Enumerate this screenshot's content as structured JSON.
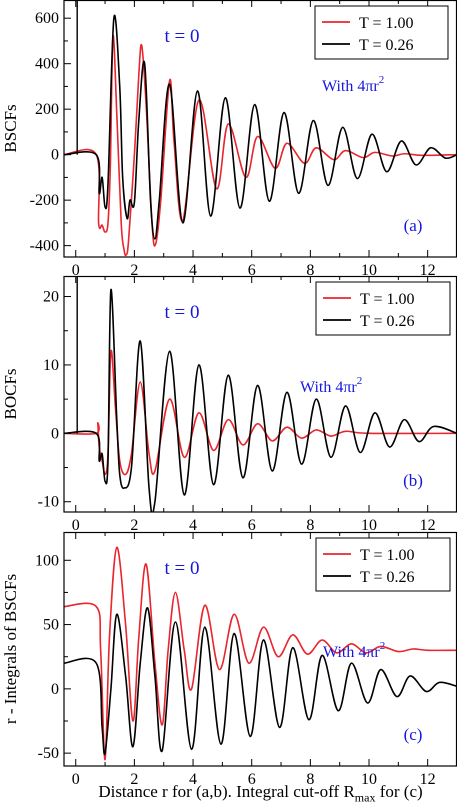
{
  "figure": {
    "xlabel_parts": {
      "prefix": "Distance  r  for (a,b). Integral cut-off  R",
      "sub": "max",
      "suffix": "  for (c)"
    },
    "xticks": [
      0,
      2,
      4,
      6,
      8,
      10,
      12
    ],
    "xlim": [
      -0.4,
      13.0
    ],
    "colors": {
      "t100": "#e8262d",
      "t026": "#000000",
      "annotation": "#1515e0"
    }
  },
  "chart_data": [
    {
      "type": "line",
      "panel": "(a)",
      "title": "t = 0",
      "annotation": "With  4πr",
      "annotation_sup": "2",
      "ylabel": "BSCFs",
      "xlim": [
        -0.4,
        13.0
      ],
      "ylim": [
        -450,
        680
      ],
      "yticks": [
        -400,
        -200,
        0,
        200,
        400,
        600
      ],
      "xticks": [
        0,
        2,
        4,
        6,
        8,
        10,
        12
      ],
      "legend": "top-right",
      "series": [
        {
          "name": "T = 1.00",
          "color": "#e8262d",
          "points": [
            [
              -0.4,
              0
            ],
            [
              0.7,
              0
            ],
            [
              0.78,
              -300
            ],
            [
              0.9,
              -310
            ],
            [
              1.0,
              -340
            ],
            [
              1.1,
              -300
            ],
            [
              1.18,
              -50
            ],
            [
              1.27,
              520
            ],
            [
              1.4,
              180
            ],
            [
              1.55,
              -300
            ],
            [
              1.65,
              -420
            ],
            [
              1.72,
              -440
            ],
            [
              1.8,
              -380
            ],
            [
              2.0,
              0
            ],
            [
              2.15,
              350
            ],
            [
              2.25,
              480
            ],
            [
              2.4,
              220
            ],
            [
              2.6,
              -300
            ],
            [
              2.72,
              -395
            ],
            [
              2.9,
              -200
            ],
            [
              3.2,
              325
            ],
            [
              3.35,
              60
            ],
            [
              3.65,
              -290
            ],
            [
              4.2,
              240
            ],
            [
              4.8,
              -150
            ],
            [
              5.2,
              135
            ],
            [
              5.8,
              -100
            ],
            [
              6.2,
              80
            ],
            [
              6.8,
              -60
            ],
            [
              7.2,
              50
            ],
            [
              7.8,
              -38
            ],
            [
              8.2,
              30
            ],
            [
              8.8,
              -22
            ],
            [
              9.2,
              18
            ],
            [
              9.8,
              -13
            ],
            [
              10.2,
              10
            ],
            [
              10.8,
              -6
            ],
            [
              11.2,
              4
            ],
            [
              11.8,
              -3
            ],
            [
              13,
              0
            ]
          ]
        },
        {
          "name": "T = 0.26",
          "color": "#000000",
          "points": [
            [
              -0.4,
              0
            ],
            [
              0.7,
              0
            ],
            [
              0.8,
              -170
            ],
            [
              0.9,
              -100
            ],
            [
              1.0,
              -230
            ],
            [
              1.1,
              -130
            ],
            [
              1.3,
              600
            ],
            [
              1.5,
              300
            ],
            [
              1.6,
              -100
            ],
            [
              1.75,
              -280
            ],
            [
              1.85,
              -200
            ],
            [
              2.0,
              -210
            ],
            [
              2.15,
              150
            ],
            [
              2.35,
              400
            ],
            [
              2.55,
              -200
            ],
            [
              2.7,
              -370
            ],
            [
              2.85,
              -200
            ],
            [
              3.2,
              310
            ],
            [
              3.65,
              -300
            ],
            [
              4.15,
              280
            ],
            [
              4.6,
              -270
            ],
            [
              5.1,
              250
            ],
            [
              5.6,
              -235
            ],
            [
              6.1,
              220
            ],
            [
              6.6,
              -205
            ],
            [
              7.1,
              185
            ],
            [
              7.6,
              -170
            ],
            [
              8.1,
              150
            ],
            [
              8.6,
              -135
            ],
            [
              9.1,
              120
            ],
            [
              9.6,
              -105
            ],
            [
              10.1,
              90
            ],
            [
              10.6,
              -75
            ],
            [
              11.1,
              60
            ],
            [
              11.6,
              -45
            ],
            [
              12.1,
              30
            ],
            [
              12.6,
              -15
            ],
            [
              13,
              0
            ]
          ]
        }
      ]
    },
    {
      "type": "line",
      "panel": "(b)",
      "title": "t = 0",
      "annotation": "With  4πr",
      "annotation_sup": "2",
      "ylabel": "BOCFs",
      "xlim": [
        -0.4,
        13.0
      ],
      "ylim": [
        -11.5,
        23
      ],
      "yticks": [
        -10,
        0,
        10,
        20
      ],
      "xticks": [
        0,
        2,
        4,
        6,
        8,
        10,
        12
      ],
      "legend": "top-right",
      "series": [
        {
          "name": "T = 1.00",
          "color": "#e8262d",
          "points": [
            [
              -0.4,
              0
            ],
            [
              0.7,
              0
            ],
            [
              0.75,
              1.5
            ],
            [
              0.8,
              -2
            ],
            [
              0.9,
              -4
            ],
            [
              1.0,
              -6
            ],
            [
              1.1,
              -3
            ],
            [
              1.2,
              12
            ],
            [
              1.35,
              4
            ],
            [
              1.5,
              -4
            ],
            [
              1.7,
              -6
            ],
            [
              1.9,
              -3
            ],
            [
              2.2,
              7.5
            ],
            [
              2.5,
              -3
            ],
            [
              2.7,
              -5.5
            ],
            [
              3.2,
              5
            ],
            [
              3.7,
              -3.5
            ],
            [
              4.2,
              3
            ],
            [
              4.7,
              -2.5
            ],
            [
              5.2,
              2
            ],
            [
              5.7,
              -1.7
            ],
            [
              6.2,
              1.4
            ],
            [
              6.7,
              -1.1
            ],
            [
              7.2,
              0.9
            ],
            [
              7.7,
              -0.7
            ],
            [
              8.2,
              0.5
            ],
            [
              8.7,
              -0.4
            ],
            [
              9.2,
              0.3
            ],
            [
              10,
              0
            ],
            [
              13,
              0
            ]
          ]
        },
        {
          "name": "T = 0.26",
          "color": "#000000",
          "points": [
            [
              -0.4,
              0
            ],
            [
              0.7,
              0
            ],
            [
              0.8,
              -4
            ],
            [
              0.9,
              -3
            ],
            [
              1.0,
              -7
            ],
            [
              1.1,
              -4
            ],
            [
              1.2,
              21
            ],
            [
              1.4,
              2
            ],
            [
              1.5,
              -6
            ],
            [
              1.65,
              -8
            ],
            [
              1.9,
              -5
            ],
            [
              2.2,
              13.5
            ],
            [
              2.5,
              -8
            ],
            [
              2.7,
              -10
            ],
            [
              3.2,
              12
            ],
            [
              3.7,
              -9
            ],
            [
              4.2,
              10
            ],
            [
              4.7,
              -7.5
            ],
            [
              5.2,
              8.5
            ],
            [
              5.7,
              -6.5
            ],
            [
              6.2,
              7
            ],
            [
              6.7,
              -5.5
            ],
            [
              7.2,
              6
            ],
            [
              7.7,
              -4.5
            ],
            [
              8.2,
              5
            ],
            [
              8.7,
              -3.5
            ],
            [
              9.2,
              4
            ],
            [
              9.7,
              -2.8
            ],
            [
              10.2,
              3
            ],
            [
              10.7,
              -2
            ],
            [
              11.2,
              2
            ],
            [
              11.7,
              -1.2
            ],
            [
              12.2,
              1
            ],
            [
              13,
              0
            ]
          ]
        }
      ]
    },
    {
      "type": "line",
      "panel": "(c)",
      "title": "t = 0",
      "annotation": "With  4πr",
      "annotation_sup": "2",
      "ylabel": "r - Integrals  of  BSCFs",
      "xlim": [
        -0.4,
        13.0
      ],
      "ylim": [
        -60,
        122
      ],
      "yticks": [
        -50,
        0,
        50,
        100
      ],
      "xticks": [
        0,
        2,
        4,
        6,
        8,
        10,
        12
      ],
      "legend": "top-right",
      "series": [
        {
          "name": "T = 1.00",
          "color": "#e8262d",
          "points": [
            [
              -0.4,
              64
            ],
            [
              0.7,
              64
            ],
            [
              0.85,
              30
            ],
            [
              1.0,
              -55
            ],
            [
              1.15,
              40
            ],
            [
              1.4,
              110
            ],
            [
              1.7,
              50
            ],
            [
              1.95,
              -25
            ],
            [
              2.15,
              40
            ],
            [
              2.4,
              97
            ],
            [
              2.7,
              20
            ],
            [
              2.95,
              -28
            ],
            [
              3.15,
              30
            ],
            [
              3.4,
              75
            ],
            [
              3.7,
              30
            ],
            [
              3.95,
              0
            ],
            [
              4.4,
              65
            ],
            [
              4.9,
              15
            ],
            [
              5.4,
              58
            ],
            [
              5.9,
              20
            ],
            [
              6.4,
              48
            ],
            [
              6.9,
              25
            ],
            [
              7.4,
              42
            ],
            [
              7.9,
              27
            ],
            [
              8.4,
              38
            ],
            [
              8.9,
              28
            ],
            [
              9.4,
              35
            ],
            [
              9.9,
              28
            ],
            [
              10.4,
              33
            ],
            [
              11,
              29
            ],
            [
              11.5,
              31
            ],
            [
              12,
              30
            ],
            [
              13,
              30
            ]
          ]
        },
        {
          "name": "T = 0.26",
          "color": "#000000",
          "points": [
            [
              -0.4,
              20
            ],
            [
              0.7,
              20
            ],
            [
              0.9,
              -30
            ],
            [
              1.0,
              -50
            ],
            [
              1.2,
              0
            ],
            [
              1.4,
              58
            ],
            [
              1.7,
              10
            ],
            [
              1.95,
              -45
            ],
            [
              2.2,
              20
            ],
            [
              2.45,
              63
            ],
            [
              2.7,
              10
            ],
            [
              2.95,
              -48
            ],
            [
              3.4,
              52
            ],
            [
              3.95,
              -47
            ],
            [
              4.4,
              48
            ],
            [
              4.95,
              -43
            ],
            [
              5.4,
              43
            ],
            [
              5.95,
              -37
            ],
            [
              6.4,
              38
            ],
            [
              6.95,
              -30
            ],
            [
              7.4,
              32
            ],
            [
              7.95,
              -24
            ],
            [
              8.4,
              26
            ],
            [
              8.95,
              -17
            ],
            [
              9.4,
              20
            ],
            [
              9.95,
              -11
            ],
            [
              10.4,
              15
            ],
            [
              10.95,
              -6
            ],
            [
              11.4,
              10
            ],
            [
              11.95,
              -2
            ],
            [
              12.4,
              5
            ],
            [
              13,
              2
            ]
          ]
        }
      ]
    }
  ]
}
